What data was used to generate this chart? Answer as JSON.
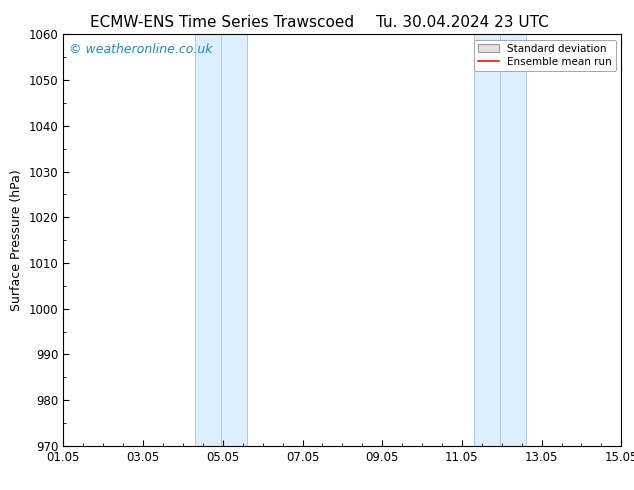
{
  "title_left": "ECMW-ENS Time Series Trawscoed",
  "title_right": "Tu. 30.04.2024 23 UTC",
  "ylabel": "Surface Pressure (hPa)",
  "ylim": [
    970,
    1060
  ],
  "yticks": [
    970,
    980,
    990,
    1000,
    1010,
    1020,
    1030,
    1040,
    1050,
    1060
  ],
  "xlim_start": 0,
  "xlim_end": 14,
  "xtick_labels": [
    "01.05",
    "03.05",
    "05.05",
    "07.05",
    "09.05",
    "11.05",
    "13.05",
    "15.05"
  ],
  "xtick_positions": [
    0,
    2,
    4,
    6,
    8,
    10,
    12,
    14
  ],
  "shaded_bands": [
    {
      "xmin": 3.3,
      "xmax": 3.95,
      "xmin2": 3.95,
      "xmax2": 4.6
    },
    {
      "xmin": 10.3,
      "xmax": 10.95,
      "xmin2": 10.95,
      "xmax2": 11.6
    }
  ],
  "shaded_color": "#ddeeff",
  "shaded_edge_color": "#aaccdd",
  "watermark_text": "© weatheronline.co.uk",
  "watermark_color": "#2288cc",
  "background_color": "#ffffff",
  "legend_std_facecolor": "#e0e0e0",
  "legend_std_edgecolor": "#999999",
  "legend_mean_color": "#dd2200",
  "title_fontsize": 11,
  "axis_label_fontsize": 9,
  "tick_fontsize": 8.5,
  "watermark_fontsize": 9
}
